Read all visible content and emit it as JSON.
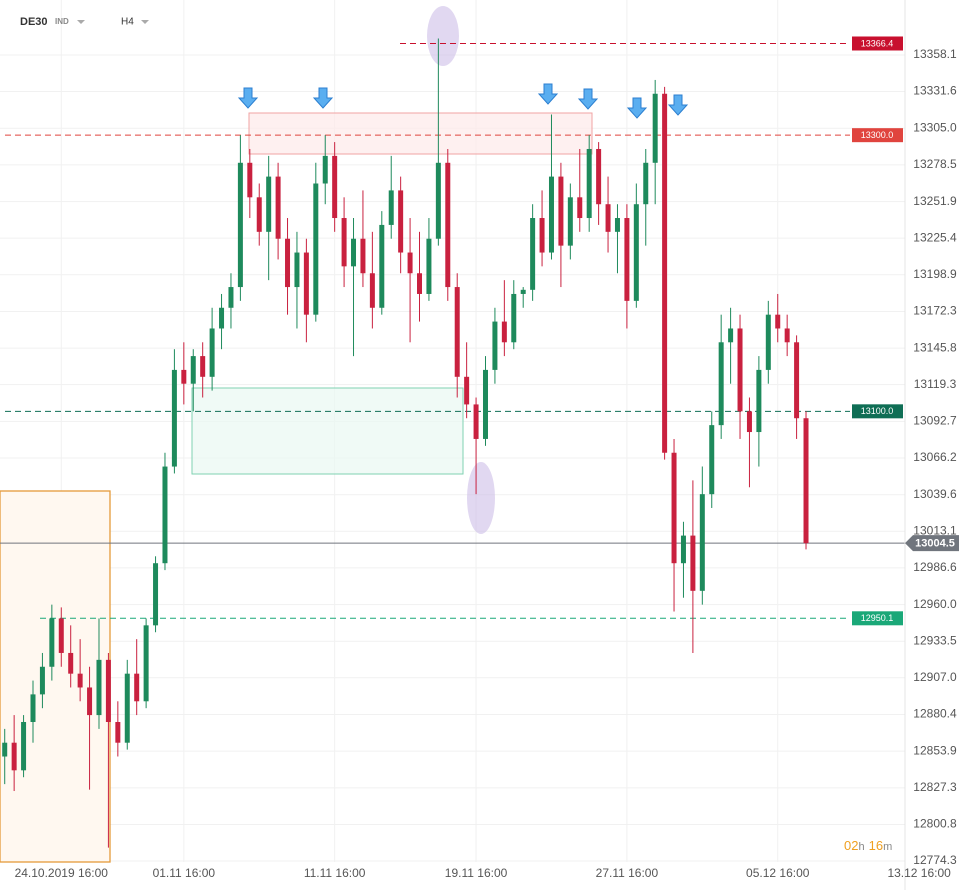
{
  "header": {
    "symbol": "DE30",
    "market": "IND",
    "timeframe": "H4"
  },
  "timer": {
    "hours": "02",
    "hours_unit": "h",
    "minutes": "16",
    "minutes_unit": "m"
  },
  "chart_data": {
    "type": "candlestick",
    "up_color": "#1e8a5c",
    "down_color": "#c9213f",
    "grid": true,
    "ylim": [
      12773.6,
      13397.9
    ],
    "yticks": [
      13358.1,
      13331.6,
      {
        "value": 13305,
        "label": "13305.0"
      },
      13278.5,
      13251.9,
      13225.4,
      13198.9,
      13172.3,
      13145.8,
      13119.3,
      13092.7,
      13066.2,
      13039.6,
      13013.1,
      12986.6,
      {
        "value": 12960,
        "label": "12960.0"
      },
      12933.5,
      {
        "value": 12907,
        "label": "12907.0"
      },
      12880.4,
      12853.9,
      12827.3,
      12800.8,
      12774.3
    ],
    "xlim": [
      -0.5,
      95.5
    ],
    "xticks": [
      {
        "value": 6,
        "label": "24.10.2019  16:00"
      },
      {
        "value": 19,
        "label": "01.11  16:00"
      },
      {
        "value": 35,
        "label": "11.11  16:00"
      },
      {
        "value": 50,
        "label": "19.11  16:00"
      },
      {
        "value": 66,
        "label": "27.11  16:00"
      },
      {
        "value": 82,
        "label": "05.12  16:00"
      },
      {
        "value": 97,
        "label": "13.12  16:00"
      }
    ],
    "open": [
      12850,
      12860,
      12840,
      12875,
      12895,
      12915,
      12950,
      12925,
      12910,
      12900,
      12880,
      12920,
      12875,
      12860,
      12910,
      12890,
      12945,
      12990,
      13060,
      13130,
      13120,
      13140,
      13125,
      13160,
      13175,
      13190,
      13280,
      13255,
      13230,
      13270,
      13225,
      13190,
      13215,
      13170,
      13265,
      13285,
      13240,
      13205,
      13225,
      13200,
      13175,
      13235,
      13260,
      13215,
      13200,
      13185,
      13225,
      13280,
      13190,
      13125,
      13105,
      13080,
      13130,
      13165,
      13150,
      13185,
      13188,
      13240,
      13215,
      13270,
      13220,
      13255,
      13240,
      13290,
      13250,
      13230,
      13240,
      13180,
      13250,
      13280,
      13330,
      13070,
      12990,
      13010,
      12970,
      13040,
      13090,
      13150,
      13160,
      13100,
      13085,
      13130,
      13170,
      13160,
      13150,
      13095
    ],
    "high": [
      12870,
      12880,
      12880,
      12905,
      12925,
      12960,
      12958,
      12945,
      12935,
      12915,
      12950,
      12925,
      12890,
      12920,
      12935,
      12950,
      12995,
      13070,
      13145,
      13150,
      13145,
      13150,
      13175,
      13185,
      13200,
      13300,
      13290,
      13265,
      13285,
      13280,
      13240,
      13230,
      13225,
      13280,
      13300,
      13295,
      13255,
      13240,
      13260,
      13230,
      13245,
      13285,
      13270,
      13240,
      13230,
      13240,
      13370,
      13290,
      13200,
      13150,
      13110,
      13140,
      13175,
      13195,
      13195,
      13190,
      13250,
      13260,
      13315,
      13280,
      13265,
      13290,
      13300,
      13295,
      13270,
      13250,
      13250,
      13265,
      13290,
      13340,
      13335,
      13080,
      13020,
      13050,
      13060,
      13100,
      13170,
      13175,
      13170,
      13110,
      13140,
      13180,
      13185,
      13170,
      13155,
      13100
    ],
    "low": [
      12830,
      12825,
      12835,
      12860,
      12885,
      12905,
      12915,
      12900,
      12890,
      12826,
      12870,
      12784,
      12850,
      12855,
      12880,
      12885,
      12940,
      12985,
      13055,
      13105,
      13100,
      13110,
      13115,
      13145,
      13160,
      13180,
      13240,
      13220,
      13195,
      13210,
      13170,
      13160,
      13150,
      13165,
      13250,
      13230,
      13190,
      13140,
      13190,
      13160,
      13170,
      13225,
      13200,
      13150,
      13165,
      13180,
      13220,
      13180,
      13110,
      13095,
      13040,
      13075,
      13120,
      13140,
      13145,
      13175,
      13180,
      13205,
      13210,
      13190,
      13210,
      13230,
      13230,
      13235,
      13215,
      13200,
      13160,
      13175,
      13220,
      13250,
      13065,
      12955,
      12965,
      12925,
      12960,
      13030,
      13080,
      13120,
      13080,
      13045,
      13060,
      13120,
      13150,
      13140,
      13080,
      13000
    ],
    "close": [
      12860,
      12840,
      12875,
      12895,
      12915,
      12950,
      12925,
      12910,
      12900,
      12880,
      12920,
      12875,
      12860,
      12910,
      12890,
      12945,
      12990,
      13060,
      13130,
      13120,
      13140,
      13125,
      13160,
      13175,
      13190,
      13280,
      13255,
      13230,
      13270,
      13225,
      13190,
      13215,
      13170,
      13265,
      13285,
      13240,
      13205,
      13225,
      13200,
      13175,
      13235,
      13260,
      13215,
      13200,
      13185,
      13225,
      13280,
      13190,
      13125,
      13105,
      13080,
      13130,
      13165,
      13150,
      13185,
      13188,
      13240,
      13215,
      13270,
      13220,
      13255,
      13240,
      13290,
      13250,
      13230,
      13240,
      13180,
      13250,
      13280,
      13330,
      13070,
      12990,
      13010,
      12970,
      13040,
      13090,
      13150,
      13160,
      13100,
      13085,
      13130,
      13170,
      13160,
      13150,
      13095,
      13004.5
    ],
    "levels": [
      {
        "value": 13366.4,
        "label": "13366.4",
        "color": "#c8102e"
      },
      {
        "value": 13300,
        "label": "13300.0",
        "color": "#e0443e"
      },
      {
        "value": 13100,
        "label": "13100.0",
        "color": "#0f6e55"
      },
      {
        "value": 12950.1,
        "label": "12950.1",
        "color": "#1aa878"
      }
    ],
    "current": {
      "value": 13004.5,
      "label": "13004.5",
      "color": "#70757d"
    }
  }
}
